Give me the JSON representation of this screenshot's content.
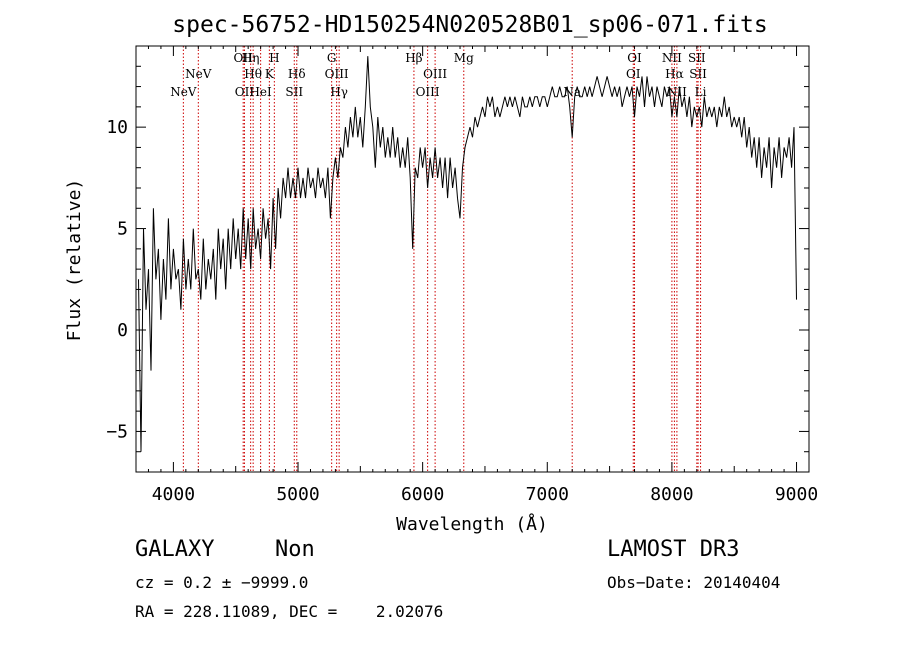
{
  "chart_data": {
    "type": "line",
    "title": "spec-56752-HD150254N020528B01_sp06-071.fits",
    "xlabel": "Wavelength (Å)",
    "ylabel": "Flux (relative)",
    "xlim": [
      3700,
      9100
    ],
    "ylim": [
      -7,
      14
    ],
    "xticks": [
      {
        "v": 4000,
        "label": "4000"
      },
      {
        "v": 5000,
        "label": "5000"
      },
      {
        "v": 6000,
        "label": "6000"
      },
      {
        "v": 7000,
        "label": "7000"
      },
      {
        "v": 8000,
        "label": "8000"
      },
      {
        "v": 9000,
        "label": "9000"
      }
    ],
    "yticks": [
      {
        "v": -5,
        "label": "−5"
      },
      {
        "v": 0,
        "label": "0"
      },
      {
        "v": 5,
        "label": "5"
      },
      {
        "v": 10,
        "label": "10"
      }
    ],
    "line_color": "#000000",
    "marker_color": "#cc0000",
    "spectrum": [
      [
        3720,
        2.5
      ],
      [
        3740,
        -6.0
      ],
      [
        3760,
        5.0
      ],
      [
        3780,
        1.0
      ],
      [
        3800,
        3.0
      ],
      [
        3820,
        -2.0
      ],
      [
        3840,
        6.0
      ],
      [
        3860,
        2.5
      ],
      [
        3880,
        4.0
      ],
      [
        3900,
        0.5
      ],
      [
        3920,
        3.5
      ],
      [
        3940,
        1.5
      ],
      [
        3960,
        5.5
      ],
      [
        3980,
        2.0
      ],
      [
        4000,
        4.0
      ],
      [
        4020,
        2.5
      ],
      [
        4040,
        3.0
      ],
      [
        4060,
        1.0
      ],
      [
        4080,
        4.5
      ],
      [
        4100,
        2.0
      ],
      [
        4120,
        3.5
      ],
      [
        4140,
        2.0
      ],
      [
        4160,
        5.0
      ],
      [
        4180,
        2.5
      ],
      [
        4200,
        3.0
      ],
      [
        4220,
        1.5
      ],
      [
        4240,
        4.5
      ],
      [
        4260,
        2.0
      ],
      [
        4280,
        3.5
      ],
      [
        4300,
        2.5
      ],
      [
        4320,
        4.0
      ],
      [
        4340,
        1.5
      ],
      [
        4360,
        5.0
      ],
      [
        4380,
        3.0
      ],
      [
        4400,
        4.5
      ],
      [
        4420,
        2.0
      ],
      [
        4440,
        5.0
      ],
      [
        4460,
        3.0
      ],
      [
        4480,
        5.5
      ],
      [
        4500,
        3.5
      ],
      [
        4520,
        5.0
      ],
      [
        4540,
        3.0
      ],
      [
        4560,
        6.0
      ],
      [
        4580,
        3.5
      ],
      [
        4600,
        5.5
      ],
      [
        4620,
        3.0
      ],
      [
        4640,
        6.0
      ],
      [
        4660,
        4.0
      ],
      [
        4680,
        5.0
      ],
      [
        4700,
        3.5
      ],
      [
        4720,
        6.0
      ],
      [
        4740,
        4.5
      ],
      [
        4760,
        5.5
      ],
      [
        4780,
        3.0
      ],
      [
        4800,
        6.5
      ],
      [
        4820,
        4.0
      ],
      [
        4840,
        7.0
      ],
      [
        4860,
        5.5
      ],
      [
        4880,
        7.5
      ],
      [
        4900,
        6.5
      ],
      [
        4920,
        8.0
      ],
      [
        4940,
        6.5
      ],
      [
        4960,
        7.5
      ],
      [
        4980,
        6.5
      ],
      [
        5000,
        8.0
      ],
      [
        5020,
        6.5
      ],
      [
        5040,
        7.5
      ],
      [
        5060,
        6.5
      ],
      [
        5080,
        8.0
      ],
      [
        5100,
        7.0
      ],
      [
        5120,
        7.5
      ],
      [
        5140,
        6.5
      ],
      [
        5160,
        8.0
      ],
      [
        5180,
        7.0
      ],
      [
        5200,
        7.5
      ],
      [
        5220,
        6.5
      ],
      [
        5240,
        8.0
      ],
      [
        5260,
        5.5
      ],
      [
        5280,
        7.5
      ],
      [
        5300,
        8.5
      ],
      [
        5320,
        7.5
      ],
      [
        5340,
        9.0
      ],
      [
        5360,
        8.5
      ],
      [
        5380,
        10.0
      ],
      [
        5400,
        9.0
      ],
      [
        5420,
        10.5
      ],
      [
        5440,
        9.5
      ],
      [
        5460,
        11.0
      ],
      [
        5480,
        9.5
      ],
      [
        5500,
        10.5
      ],
      [
        5520,
        9.0
      ],
      [
        5540,
        11.0
      ],
      [
        5560,
        13.5
      ],
      [
        5580,
        11.0
      ],
      [
        5600,
        10.0
      ],
      [
        5620,
        8.0
      ],
      [
        5640,
        10.5
      ],
      [
        5660,
        9.0
      ],
      [
        5680,
        10.0
      ],
      [
        5700,
        8.5
      ],
      [
        5720,
        9.5
      ],
      [
        5740,
        8.5
      ],
      [
        5760,
        10.0
      ],
      [
        5780,
        8.5
      ],
      [
        5800,
        9.5
      ],
      [
        5820,
        8.0
      ],
      [
        5840,
        9.0
      ],
      [
        5860,
        8.0
      ],
      [
        5880,
        9.5
      ],
      [
        5900,
        7.5
      ],
      [
        5920,
        4.0
      ],
      [
        5940,
        8.0
      ],
      [
        5960,
        7.5
      ],
      [
        5980,
        9.0
      ],
      [
        6000,
        8.0
      ],
      [
        6020,
        9.0
      ],
      [
        6040,
        7.0
      ],
      [
        6060,
        8.5
      ],
      [
        6080,
        7.5
      ],
      [
        6100,
        9.0
      ],
      [
        6120,
        7.5
      ],
      [
        6140,
        8.5
      ],
      [
        6160,
        7.0
      ],
      [
        6180,
        8.5
      ],
      [
        6200,
        6.5
      ],
      [
        6220,
        8.5
      ],
      [
        6240,
        7.0
      ],
      [
        6260,
        8.0
      ],
      [
        6280,
        6.5
      ],
      [
        6300,
        5.5
      ],
      [
        6320,
        8.0
      ],
      [
        6340,
        9.0
      ],
      [
        6360,
        9.5
      ],
      [
        6380,
        10.0
      ],
      [
        6400,
        9.5
      ],
      [
        6420,
        10.5
      ],
      [
        6440,
        10.0
      ],
      [
        6460,
        10.5
      ],
      [
        6480,
        11.0
      ],
      [
        6500,
        10.5
      ],
      [
        6520,
        11.5
      ],
      [
        6540,
        11.0
      ],
      [
        6560,
        11.5
      ],
      [
        6580,
        10.5
      ],
      [
        6600,
        11.0
      ],
      [
        6620,
        10.5
      ],
      [
        6640,
        11.0
      ],
      [
        6660,
        11.5
      ],
      [
        6680,
        11.0
      ],
      [
        6700,
        11.5
      ],
      [
        6720,
        11.0
      ],
      [
        6740,
        11.5
      ],
      [
        6760,
        11.0
      ],
      [
        6780,
        10.5
      ],
      [
        6800,
        11.5
      ],
      [
        6820,
        11.0
      ],
      [
        6840,
        11.0
      ],
      [
        6860,
        11.5
      ],
      [
        6880,
        11.0
      ],
      [
        6900,
        11.5
      ],
      [
        6920,
        11.5
      ],
      [
        6940,
        11.0
      ],
      [
        6960,
        11.5
      ],
      [
        6980,
        11.5
      ],
      [
        7000,
        11.0
      ],
      [
        7020,
        11.5
      ],
      [
        7040,
        12.0
      ],
      [
        7060,
        11.5
      ],
      [
        7080,
        11.5
      ],
      [
        7100,
        12.0
      ],
      [
        7120,
        11.5
      ],
      [
        7140,
        11.5
      ],
      [
        7160,
        12.0
      ],
      [
        7180,
        11.0
      ],
      [
        7200,
        9.5
      ],
      [
        7220,
        11.5
      ],
      [
        7240,
        12.0
      ],
      [
        7260,
        11.5
      ],
      [
        7280,
        11.5
      ],
      [
        7300,
        12.0
      ],
      [
        7320,
        11.5
      ],
      [
        7340,
        12.0
      ],
      [
        7360,
        11.5
      ],
      [
        7380,
        12.0
      ],
      [
        7400,
        12.5
      ],
      [
        7420,
        12.0
      ],
      [
        7440,
        11.5
      ],
      [
        7460,
        12.0
      ],
      [
        7480,
        12.5
      ],
      [
        7500,
        12.0
      ],
      [
        7520,
        11.5
      ],
      [
        7540,
        12.0
      ],
      [
        7560,
        11.5
      ],
      [
        7580,
        12.0
      ],
      [
        7600,
        11.0
      ],
      [
        7620,
        11.5
      ],
      [
        7640,
        12.0
      ],
      [
        7660,
        11.5
      ],
      [
        7680,
        12.0
      ],
      [
        7700,
        10.5
      ],
      [
        7720,
        12.0
      ],
      [
        7740,
        11.5
      ],
      [
        7760,
        12.5
      ],
      [
        7780,
        11.0
      ],
      [
        7800,
        12.5
      ],
      [
        7820,
        11.5
      ],
      [
        7840,
        12.0
      ],
      [
        7860,
        11.0
      ],
      [
        7880,
        12.0
      ],
      [
        7900,
        11.5
      ],
      [
        7920,
        11.0
      ],
      [
        7940,
        12.0
      ],
      [
        7960,
        11.5
      ],
      [
        7980,
        12.0
      ],
      [
        8000,
        10.5
      ],
      [
        8020,
        11.5
      ],
      [
        8040,
        10.5
      ],
      [
        8060,
        12.0
      ],
      [
        8080,
        11.0
      ],
      [
        8100,
        11.5
      ],
      [
        8120,
        10.5
      ],
      [
        8140,
        11.5
      ],
      [
        8160,
        10.0
      ],
      [
        8180,
        11.0
      ],
      [
        8200,
        10.5
      ],
      [
        8220,
        11.0
      ],
      [
        8240,
        10.0
      ],
      [
        8260,
        11.5
      ],
      [
        8280,
        10.5
      ],
      [
        8300,
        11.0
      ],
      [
        8320,
        10.5
      ],
      [
        8340,
        11.0
      ],
      [
        8360,
        10.0
      ],
      [
        8380,
        11.0
      ],
      [
        8400,
        10.5
      ],
      [
        8420,
        11.5
      ],
      [
        8440,
        10.5
      ],
      [
        8460,
        11.0
      ],
      [
        8480,
        10.0
      ],
      [
        8500,
        10.5
      ],
      [
        8520,
        10.0
      ],
      [
        8540,
        10.5
      ],
      [
        8560,
        9.5
      ],
      [
        8580,
        10.5
      ],
      [
        8600,
        9.0
      ],
      [
        8620,
        10.0
      ],
      [
        8640,
        8.5
      ],
      [
        8660,
        9.5
      ],
      [
        8680,
        8.0
      ],
      [
        8700,
        9.5
      ],
      [
        8720,
        7.5
      ],
      [
        8740,
        9.0
      ],
      [
        8760,
        8.0
      ],
      [
        8780,
        9.5
      ],
      [
        8800,
        7.0
      ],
      [
        8820,
        9.0
      ],
      [
        8840,
        8.0
      ],
      [
        8860,
        9.5
      ],
      [
        8880,
        7.5
      ],
      [
        8900,
        9.0
      ],
      [
        8920,
        8.5
      ],
      [
        8940,
        9.5
      ],
      [
        8960,
        8.0
      ],
      [
        8980,
        10.0
      ],
      [
        9000,
        1.5
      ]
    ],
    "lines": [
      {
        "label": "NeV",
        "wl": 4080,
        "row": 1
      },
      {
        "label": "NeV",
        "wl": 4200,
        "row": 0
      },
      {
        "label": "OII",
        "wl": 4560,
        "row": -1
      },
      {
        "label": "OII",
        "wl": 4570,
        "row": 1
      },
      {
        "label": "Hη",
        "wl": 4620,
        "row": -1
      },
      {
        "label": "Hθ",
        "wl": 4640,
        "row": 0
      },
      {
        "label": "HeI",
        "wl": 4700,
        "row": 1
      },
      {
        "label": "K",
        "wl": 4770,
        "row": 0
      },
      {
        "label": "H",
        "wl": 4810,
        "row": -1
      },
      {
        "label": "Hδ",
        "wl": 4990,
        "row": 0
      },
      {
        "label": "SII",
        "wl": 4970,
        "row": 1
      },
      {
        "label": "G",
        "wl": 5270,
        "row": -1
      },
      {
        "label": "OIII",
        "wl": 5310,
        "row": 0
      },
      {
        "label": "Hγ",
        "wl": 5330,
        "row": 1
      },
      {
        "label": "Hβ",
        "wl": 5930,
        "row": -1
      },
      {
        "label": "OIII",
        "wl": 6040,
        "row": 1
      },
      {
        "label": "OIII",
        "wl": 6100,
        "row": 0
      },
      {
        "label": "Mg",
        "wl": 6330,
        "row": -1
      },
      {
        "label": "Na",
        "wl": 7200,
        "row": 1
      },
      {
        "label": "OI",
        "wl": 7700,
        "row": -1
      },
      {
        "label": "OI",
        "wl": 7690,
        "row": 0
      },
      {
        "label": "NII",
        "wl": 8000,
        "row": -1
      },
      {
        "label": "Hα",
        "wl": 8020,
        "row": 0
      },
      {
        "label": "NII",
        "wl": 8040,
        "row": 1
      },
      {
        "label": "SII",
        "wl": 8200,
        "row": -1
      },
      {
        "label": "SII",
        "wl": 8210,
        "row": 0
      },
      {
        "label": "Li",
        "wl": 8230,
        "row": 1
      }
    ]
  },
  "info": {
    "class": "GALAXY",
    "subclass": "Non",
    "survey": "LAMOST DR3",
    "cz": "cz = 0.2 ± −9999.0",
    "obsdate": "Obs−Date: 20140404",
    "radec": "RA = 228.11089, DEC =    2.02076"
  }
}
